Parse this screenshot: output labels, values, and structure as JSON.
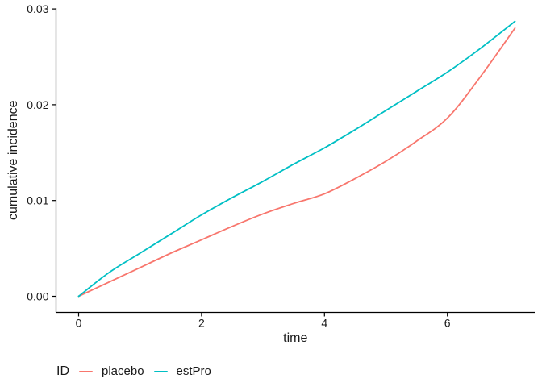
{
  "figure": {
    "background": "#ffffff",
    "axis_color": "#000000",
    "text_color": "#1a1a1a"
  },
  "chart_data": {
    "type": "line",
    "title": "",
    "xlabel": "time",
    "ylabel": "cumulative incidence",
    "x_ticks": [
      0,
      2,
      4,
      6
    ],
    "x_tick_labels": [
      "0",
      "2",
      "4",
      "6"
    ],
    "y_ticks": [
      0,
      0.01,
      0.02,
      0.03
    ],
    "y_tick_labels": [
      "0.00",
      "0.01",
      "0.02",
      "0.03"
    ],
    "xlim": [
      -0.37,
      7.43
    ],
    "ylim": [
      0,
      0.03
    ],
    "grid": false,
    "legend_position": "bottom-left",
    "x": [
      0,
      0.5,
      1,
      1.5,
      2,
      2.5,
      3,
      3.5,
      4,
      4.5,
      5,
      5.5,
      6,
      6.5,
      7.1
    ],
    "series": [
      {
        "name": "placebo",
        "color": "#F8766D",
        "values": [
          0,
          0.0015,
          0.003,
          0.0045,
          0.0059,
          0.0073,
          0.0086,
          0.0097,
          0.0107,
          0.0123,
          0.0141,
          0.0162,
          0.0186,
          0.0226,
          0.028
        ]
      },
      {
        "name": "estPro",
        "color": "#00BFC4",
        "values": [
          0,
          0.0025,
          0.0045,
          0.0065,
          0.0085,
          0.0103,
          0.012,
          0.0138,
          0.0155,
          0.0174,
          0.0194,
          0.0214,
          0.0234,
          0.0257,
          0.0287
        ]
      }
    ]
  },
  "legend": {
    "title": "ID",
    "items": [
      {
        "label": "placebo",
        "color": "#F8766D"
      },
      {
        "label": "estPro",
        "color": "#00BFC4"
      }
    ]
  }
}
